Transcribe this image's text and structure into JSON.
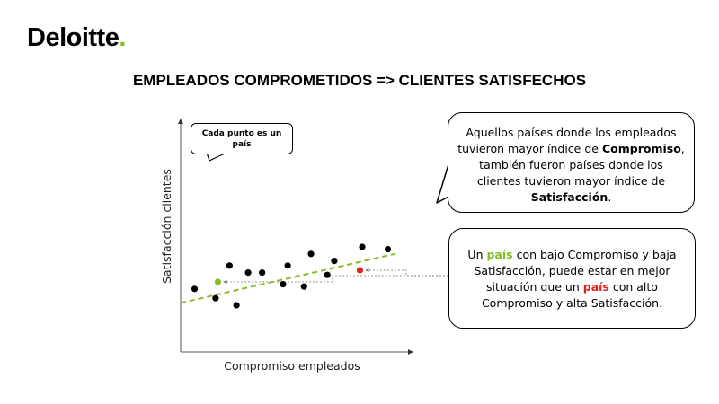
{
  "logo": {
    "text": "Deloitte",
    "dot": ".",
    "accent": "#86bc25"
  },
  "title": "EMPLEADOS COMPROMETIDOS => CLIENTES SATISFECHOS",
  "note": {
    "text": "Cada punto es un país"
  },
  "callout_top": {
    "line1": "Aquellos países donde los empleados tuvieron mayor índice de",
    "bold1": "Compromiso",
    "line2": ", también fueron países donde los clientes tuvieron mayor índice de",
    "bold2": "Satisfacción",
    "end": "."
  },
  "callout_bottom": {
    "part1": "Un",
    "pais1": "país",
    "part2": "con bajo Compromiso y baja Satisfacción, puede estar en mejor situación que un",
    "pais2": "país",
    "part3": "con alto Compromiso y alta Satisfacción."
  },
  "colors": {
    "green": "#86bc25",
    "red": "#e0201b",
    "dot": "#000000",
    "trend": "#86bc25"
  },
  "chart_data": {
    "type": "scatter",
    "xlabel": "Compromiso empleados",
    "ylabel": "Satisfacción clientes",
    "xlim": [
      0,
      100
    ],
    "ylim": [
      0,
      100
    ],
    "grid": false,
    "points": [
      {
        "x": 6,
        "y": 27,
        "color": "black"
      },
      {
        "x": 15,
        "y": 23,
        "color": "black"
      },
      {
        "x": 16,
        "y": 30,
        "color": "green"
      },
      {
        "x": 21,
        "y": 37,
        "color": "black"
      },
      {
        "x": 24,
        "y": 20,
        "color": "black"
      },
      {
        "x": 29,
        "y": 34,
        "color": "black"
      },
      {
        "x": 35,
        "y": 34,
        "color": "black"
      },
      {
        "x": 44,
        "y": 29,
        "color": "black"
      },
      {
        "x": 46,
        "y": 37,
        "color": "black"
      },
      {
        "x": 53,
        "y": 28,
        "color": "black"
      },
      {
        "x": 56,
        "y": 42,
        "color": "black"
      },
      {
        "x": 63,
        "y": 33,
        "color": "black"
      },
      {
        "x": 66,
        "y": 39,
        "color": "black"
      },
      {
        "x": 77,
        "y": 35,
        "color": "red"
      },
      {
        "x": 78,
        "y": 45,
        "color": "black"
      },
      {
        "x": 89,
        "y": 44,
        "color": "black"
      }
    ],
    "trendline": {
      "x": [
        0,
        92
      ],
      "y": [
        21,
        42
      ],
      "style": "dashed"
    }
  }
}
